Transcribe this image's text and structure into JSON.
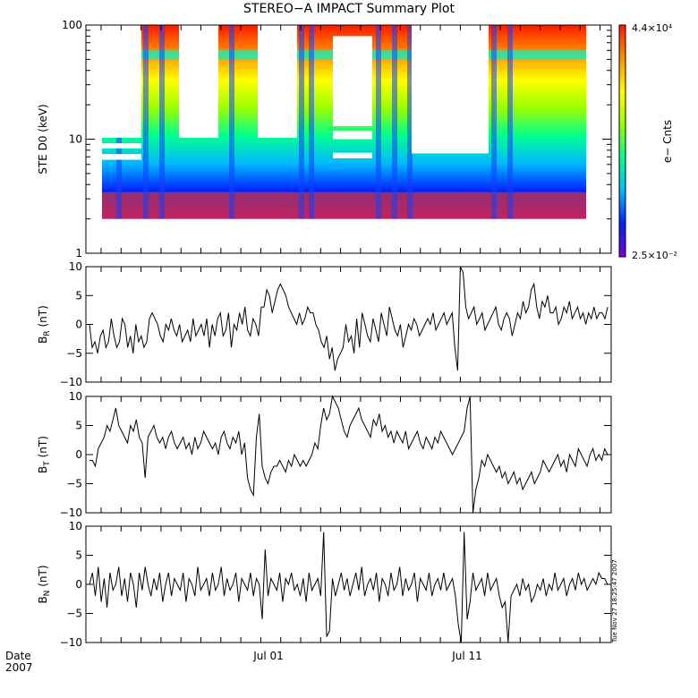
{
  "title": "STEREO−A IMPACT Summary Plot",
  "footer": {
    "date_label": "Date",
    "year_label": "2007",
    "timestamp": "Tue Nov 27 18:25:47 2007"
  },
  "x_ticks": [
    "Jul 01",
    "Jul 11"
  ],
  "colors": {
    "line": "#000000",
    "axis": "#000000",
    "gap": "#ffffff"
  },
  "chart_data": [
    {
      "type": "heatmap",
      "ylabel": "STE D0 (keV)",
      "yscale": "log",
      "ylim": [
        1,
        100
      ],
      "yticks": [
        "1",
        "10",
        "100"
      ],
      "colorbar": {
        "label": "e− Cnts",
        "max_label": "4.4×10⁴",
        "min_label": "2.5×10⁻²",
        "scale": "log",
        "max": 44000,
        "min": 0.025
      },
      "energy_range_keV": [
        2,
        100
      ],
      "colormap": [
        "#7a00d8",
        "#0020ff",
        "#00b8ff",
        "#00ff90",
        "#9aff00",
        "#ffff00",
        "#ff9000",
        "#ff1a00"
      ]
    },
    {
      "type": "line",
      "ylabel_main": "B",
      "ylabel_sub": "R",
      "ylabel_unit": " (nT)",
      "ylim": [
        -10,
        10
      ],
      "yticks": [
        "−10",
        "−5",
        "0",
        "5",
        "10"
      ],
      "values": [
        0,
        -4,
        -3,
        -5,
        -2,
        -1,
        -4,
        -3,
        1,
        -2,
        -4,
        -3,
        1,
        0,
        -4,
        -2,
        -5,
        0,
        -3,
        -2,
        -4,
        -3,
        1,
        2,
        1,
        0,
        -2,
        -3,
        0,
        -1,
        1,
        -1,
        -2,
        0,
        -3,
        -2,
        -1,
        -3,
        1,
        -2,
        -1,
        0,
        -2,
        1,
        -4,
        0,
        -2,
        1,
        2,
        -2,
        -1,
        2,
        -4,
        0,
        -1,
        2,
        0,
        3,
        -1,
        -2,
        1,
        0,
        -2,
        3,
        3,
        6,
        5,
        2,
        4,
        6,
        7,
        6,
        5,
        3,
        2,
        1,
        0,
        2,
        0,
        1,
        3,
        2,
        2,
        0,
        -1,
        -3,
        -4,
        -2,
        -6,
        -4,
        -8,
        -6,
        -5,
        -4,
        0,
        -3,
        -2,
        -5,
        1,
        -4,
        2,
        0,
        -2,
        -3,
        1,
        -1,
        -3,
        2,
        0,
        -2,
        3,
        1,
        -1,
        -2,
        0,
        -4,
        -2,
        0,
        -1,
        1,
        0,
        -2,
        -1,
        0,
        1,
        0,
        2,
        -1,
        0,
        1,
        2,
        0,
        1,
        2,
        -4,
        -8,
        10,
        9,
        3,
        1,
        2,
        3,
        0,
        1,
        2,
        -1,
        0,
        1,
        2,
        3,
        0,
        -1,
        1,
        2,
        1,
        -2,
        0,
        2,
        1,
        4,
        2,
        3,
        6,
        7,
        3,
        1,
        4,
        3,
        5,
        2,
        2,
        3,
        0,
        1,
        3,
        2,
        4,
        1,
        2,
        3,
        1,
        2,
        0,
        2,
        1,
        3,
        1,
        2,
        2,
        1,
        3
      ]
    },
    {
      "type": "line",
      "ylabel_main": "B",
      "ylabel_sub": "T",
      "ylabel_unit": " (nT)",
      "ylim": [
        -10,
        10
      ],
      "yticks": [
        "−10",
        "−5",
        "0",
        "5",
        "10"
      ],
      "values": [
        -1,
        -1,
        -2,
        1,
        2,
        3,
        5,
        4,
        6,
        8,
        5,
        4,
        3,
        2,
        5,
        4,
        6,
        3,
        2,
        -4,
        3,
        4,
        5,
        3,
        2,
        3,
        1,
        3,
        4,
        2,
        1,
        2,
        3,
        1,
        2,
        0,
        3,
        1,
        2,
        4,
        3,
        2,
        1,
        2,
        0,
        3,
        4,
        2,
        1,
        3,
        2,
        4,
        0,
        2,
        -4,
        -6,
        -7,
        3,
        7,
        -2,
        -4,
        -5,
        -3,
        -2,
        -2,
        -1,
        -2,
        -3,
        -1,
        -2,
        0,
        -1,
        -2,
        -1,
        -2,
        -1,
        0,
        2,
        1,
        5,
        8,
        6,
        7,
        10,
        9,
        8,
        6,
        4,
        3,
        5,
        6,
        7,
        8,
        6,
        5,
        4,
        3,
        6,
        5,
        7,
        4,
        5,
        3,
        4,
        2,
        4,
        3,
        2,
        4,
        1,
        2,
        3,
        4,
        2,
        1,
        3,
        2,
        1,
        3,
        2,
        4,
        3,
        2,
        1,
        0,
        1,
        2,
        3,
        4,
        8,
        10,
        -10,
        -6,
        -4,
        -1,
        -2,
        0,
        -1,
        -2,
        -3,
        -2,
        -4,
        -3,
        -5,
        -4,
        -3,
        -5,
        -4,
        -6,
        -5,
        -4,
        -3,
        -5,
        -4,
        -3,
        -1,
        -2,
        -3,
        -2,
        -1,
        0,
        -2,
        -1,
        -3,
        0,
        -1,
        -2,
        1,
        0,
        -1,
        -2,
        0,
        1,
        -1,
        0,
        -1,
        1,
        0
      ]
    },
    {
      "type": "line",
      "ylabel_main": "B",
      "ylabel_sub": "N",
      "ylabel_unit": " (nT)",
      "ylim": [
        -10,
        10
      ],
      "yticks": [
        "−10",
        "−5",
        "0",
        "5",
        "10"
      ],
      "values": [
        0,
        2,
        -2,
        3,
        -3,
        1,
        -4,
        2,
        -1,
        0,
        3,
        -2,
        1,
        -3,
        2,
        0,
        -4,
        2,
        -1,
        3,
        0,
        -2,
        1,
        -1,
        2,
        -3,
        0,
        2,
        -2,
        1,
        0,
        -1,
        2,
        -3,
        1,
        0,
        -2,
        3,
        -1,
        0,
        1,
        -2,
        2,
        -1,
        0,
        3,
        -2,
        1,
        -1,
        0,
        2,
        -3,
        1,
        0,
        -1,
        2,
        -2,
        1,
        0,
        -6,
        6,
        -2,
        1,
        0,
        -1,
        2,
        -3,
        1,
        0,
        2,
        -1,
        0,
        -2,
        1,
        -3,
        2,
        -1,
        0,
        1,
        -2,
        9,
        -9,
        -8,
        1,
        -2,
        0,
        2,
        -1,
        1,
        -2,
        0,
        2,
        -1,
        3,
        -2,
        0,
        1,
        -1,
        2,
        -3,
        1,
        0,
        -2,
        2,
        -1,
        0,
        3,
        -2,
        1,
        -1,
        0,
        2,
        -3,
        1,
        0,
        -1,
        2,
        -2,
        0,
        1,
        -1,
        2,
        -1,
        0,
        1,
        -2,
        -7,
        -10,
        9,
        -6,
        -3,
        2,
        -1,
        0,
        1,
        -2,
        2,
        -1,
        0,
        1,
        -2,
        -4,
        -3,
        -10,
        -2,
        -1,
        0,
        -2,
        1,
        -1,
        0,
        -3,
        -2,
        0,
        -1,
        1,
        -2,
        0,
        -1,
        2,
        -1,
        0,
        1,
        -2,
        0,
        1,
        -1,
        2,
        0,
        1,
        -1,
        0,
        1,
        0,
        2,
        1,
        1,
        0
      ]
    }
  ]
}
